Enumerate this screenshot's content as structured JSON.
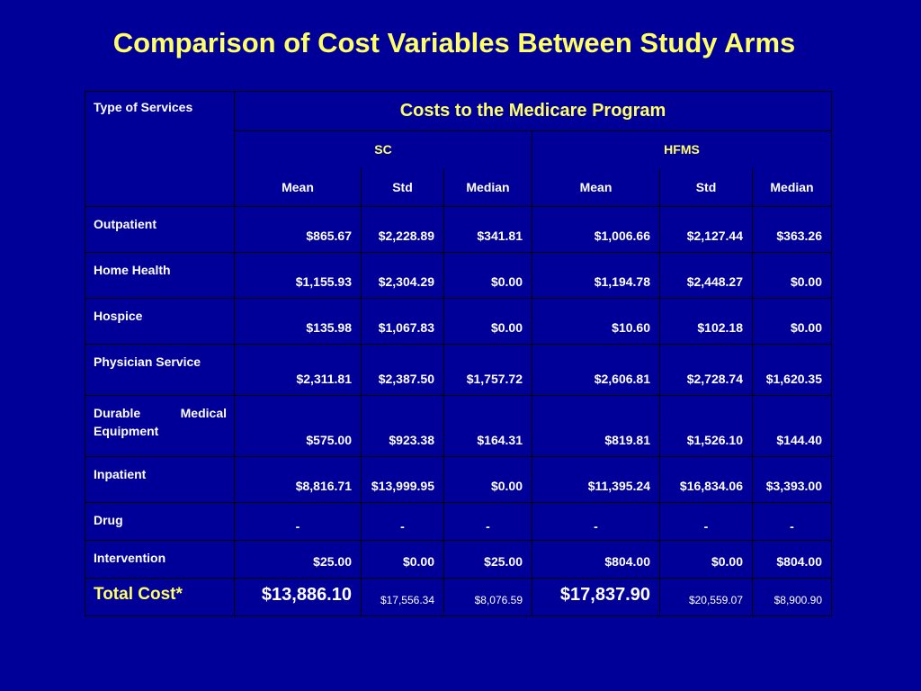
{
  "title": "Comparison of Cost Variables Between Study Arms",
  "table": {
    "type_header": "Type of Services",
    "main_header": "Costs to the Medicare Program",
    "groups": [
      "SC",
      "HFMS"
    ],
    "stat_headers": [
      "Mean",
      "Std",
      "Median",
      "Mean",
      "Std",
      "Median"
    ],
    "rows": [
      {
        "service": "Outpatient",
        "values": [
          "$865.67",
          "$2,228.89",
          "$341.81",
          "$1,006.66",
          "$2,127.44",
          "$363.26"
        ]
      },
      {
        "service": "Home Health",
        "values": [
          "$1,155.93",
          "$2,304.29",
          "$0.00",
          "$1,194.78",
          "$2,448.27",
          "$0.00"
        ]
      },
      {
        "service": "Hospice",
        "values": [
          "$135.98",
          "$1,067.83",
          "$0.00",
          "$10.60",
          "$102.18",
          "$0.00"
        ]
      },
      {
        "service": "Physician Service",
        "values": [
          "$2,311.81",
          "$2,387.50",
          "$1,757.72",
          "$2,606.81",
          "$2,728.74",
          "$1,620.35"
        ]
      },
      {
        "service": "Durable Medical Equipment",
        "values": [
          "$575.00",
          "$923.38",
          "$164.31",
          "$819.81",
          "$1,526.10",
          "$144.40"
        ]
      },
      {
        "service": "Inpatient",
        "values": [
          "$8,816.71",
          "$13,999.95",
          "$0.00",
          "$11,395.24",
          "$16,834.06",
          "$3,393.00"
        ]
      },
      {
        "service": "Drug",
        "values": [
          "-",
          "-",
          "-",
          "-",
          "-",
          "-"
        ]
      },
      {
        "service": "Intervention",
        "values": [
          "$25.00",
          "$0.00",
          "$25.00",
          "$804.00",
          "$0.00",
          "$804.00"
        ]
      }
    ],
    "total": {
      "label": "Total Cost*",
      "values": [
        "$13,886.10",
        "$17,556.34",
        "$8,076.59",
        "$17,837.90",
        "$20,559.07",
        "$8,900.90"
      ]
    }
  }
}
